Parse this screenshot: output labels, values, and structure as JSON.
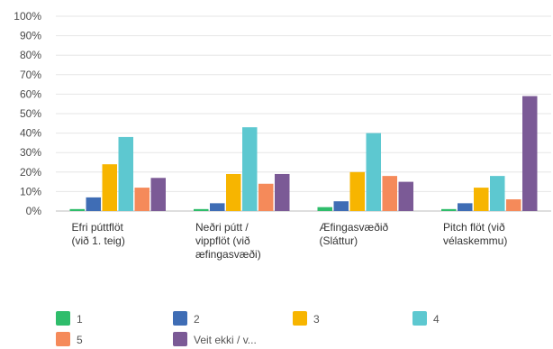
{
  "chart_data": {
    "type": "bar",
    "title": "",
    "xlabel": "",
    "ylabel": "",
    "ylim": [
      0,
      100
    ],
    "y_ticks": [
      "0%",
      "10%",
      "20%",
      "30%",
      "40%",
      "50%",
      "60%",
      "70%",
      "80%",
      "90%",
      "100%"
    ],
    "grid": true,
    "legend_position": "bottom",
    "categories": [
      [
        "Efri púttflöt",
        "(við 1. teig)"
      ],
      [
        "Neðri pútt /",
        "vippflöt (við",
        "æfingasvæði)"
      ],
      [
        "Æfingasvæðið",
        "(Sláttur)"
      ],
      [
        "Pitch flöt (við",
        "vélaskemmu)"
      ]
    ],
    "series": [
      {
        "name": "1",
        "color": "#2fbd6b",
        "values": [
          1,
          1,
          2,
          1
        ]
      },
      {
        "name": "2",
        "color": "#3f6db5",
        "values": [
          7,
          4,
          5,
          4
        ]
      },
      {
        "name": "3",
        "color": "#f7b500",
        "values": [
          24,
          19,
          20,
          12
        ]
      },
      {
        "name": "4",
        "color": "#5dc8d0",
        "values": [
          38,
          43,
          40,
          18
        ]
      },
      {
        "name": "5",
        "color": "#f58a5a",
        "values": [
          12,
          14,
          18,
          6
        ]
      },
      {
        "name": "Veit ekki / v...",
        "color": "#7b5a96",
        "values": [
          17,
          19,
          15,
          59
        ]
      }
    ]
  }
}
